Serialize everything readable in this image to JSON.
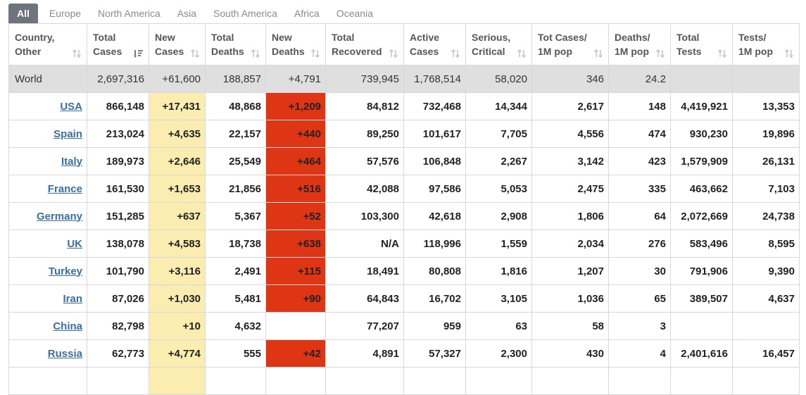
{
  "tabs": [
    {
      "label": "All",
      "active": true
    },
    {
      "label": "Europe",
      "active": false
    },
    {
      "label": "North America",
      "active": false
    },
    {
      "label": "Asia",
      "active": false
    },
    {
      "label": "South America",
      "active": false
    },
    {
      "label": "Africa",
      "active": false
    },
    {
      "label": "Oceania",
      "active": false
    }
  ],
  "columns": [
    {
      "line1": "Country,",
      "line2": "Other",
      "sort": "unsorted"
    },
    {
      "line1": "Total",
      "line2": "Cases",
      "sort": "descending"
    },
    {
      "line1": "New",
      "line2": "Cases",
      "sort": "unsorted"
    },
    {
      "line1": "Total",
      "line2": "Deaths",
      "sort": "unsorted"
    },
    {
      "line1": "New",
      "line2": "Deaths",
      "sort": "unsorted"
    },
    {
      "line1": "Total",
      "line2": "Recovered",
      "sort": "unsorted"
    },
    {
      "line1": "Active",
      "line2": "Cases",
      "sort": "unsorted"
    },
    {
      "line1": "Serious,",
      "line2": "Critical",
      "sort": "unsorted"
    },
    {
      "line1": "Tot Cases/",
      "line2": "1M pop",
      "sort": "unsorted"
    },
    {
      "line1": "Deaths/",
      "line2": "1M pop",
      "sort": "unsorted"
    },
    {
      "line1": "Total",
      "line2": "Tests",
      "sort": "unsorted"
    },
    {
      "line1": "Tests/",
      "line2": "1M pop",
      "sort": "unsorted"
    }
  ],
  "world": [
    "World",
    "2,697,316",
    "+61,600",
    "188,857",
    "+4,791",
    "739,945",
    "1,768,514",
    "58,020",
    "346",
    "24.2",
    "",
    ""
  ],
  "rows": [
    [
      "USA",
      "866,148",
      "+17,431",
      "48,868",
      "+1,209",
      "84,812",
      "732,468",
      "14,344",
      "2,617",
      "148",
      "4,419,921",
      "13,353"
    ],
    [
      "Spain",
      "213,024",
      "+4,635",
      "22,157",
      "+440",
      "89,250",
      "101,617",
      "7,705",
      "4,556",
      "474",
      "930,230",
      "19,896"
    ],
    [
      "Italy",
      "189,973",
      "+2,646",
      "25,549",
      "+464",
      "57,576",
      "106,848",
      "2,267",
      "3,142",
      "423",
      "1,579,909",
      "26,131"
    ],
    [
      "France",
      "161,530",
      "+1,653",
      "21,856",
      "+516",
      "42,088",
      "97,586",
      "5,053",
      "2,475",
      "335",
      "463,662",
      "7,103"
    ],
    [
      "Germany",
      "151,285",
      "+637",
      "5,367",
      "+52",
      "103,300",
      "42,618",
      "2,908",
      "1,806",
      "64",
      "2,072,669",
      "24,738"
    ],
    [
      "UK",
      "138,078",
      "+4,583",
      "18,738",
      "+638",
      "N/A",
      "118,996",
      "1,559",
      "2,034",
      "276",
      "583,496",
      "8,595"
    ],
    [
      "Turkey",
      "101,790",
      "+3,116",
      "2,491",
      "+115",
      "18,491",
      "80,808",
      "1,816",
      "1,207",
      "30",
      "791,906",
      "9,390"
    ],
    [
      "Iran",
      "87,026",
      "+1,030",
      "5,481",
      "+90",
      "64,843",
      "16,702",
      "3,105",
      "1,036",
      "65",
      "389,507",
      "4,637"
    ],
    [
      "China",
      "82,798",
      "+10",
      "4,632",
      "",
      "77,207",
      "959",
      "63",
      "58",
      "3",
      "",
      ""
    ],
    [
      "Russia",
      "62,773",
      "+4,774",
      "555",
      "+42",
      "4,891",
      "57,327",
      "2,300",
      "430",
      "4",
      "2,401,616",
      "16,457"
    ],
    [
      "",
      "",
      "",
      "",
      "",
      "",
      "",
      "",
      "",
      "",
      "",
      ""
    ]
  ],
  "colors": {
    "tab_active_bg": "#6d747b",
    "new_cases_bg": "#fbedb0",
    "new_deaths_bg": "#de3614",
    "world_row_bg": "#dfdfdf",
    "link": "#3a6ea5"
  },
  "icons": {
    "unsorted": "sort-both-icon",
    "descending": "sort-descending-icon"
  }
}
